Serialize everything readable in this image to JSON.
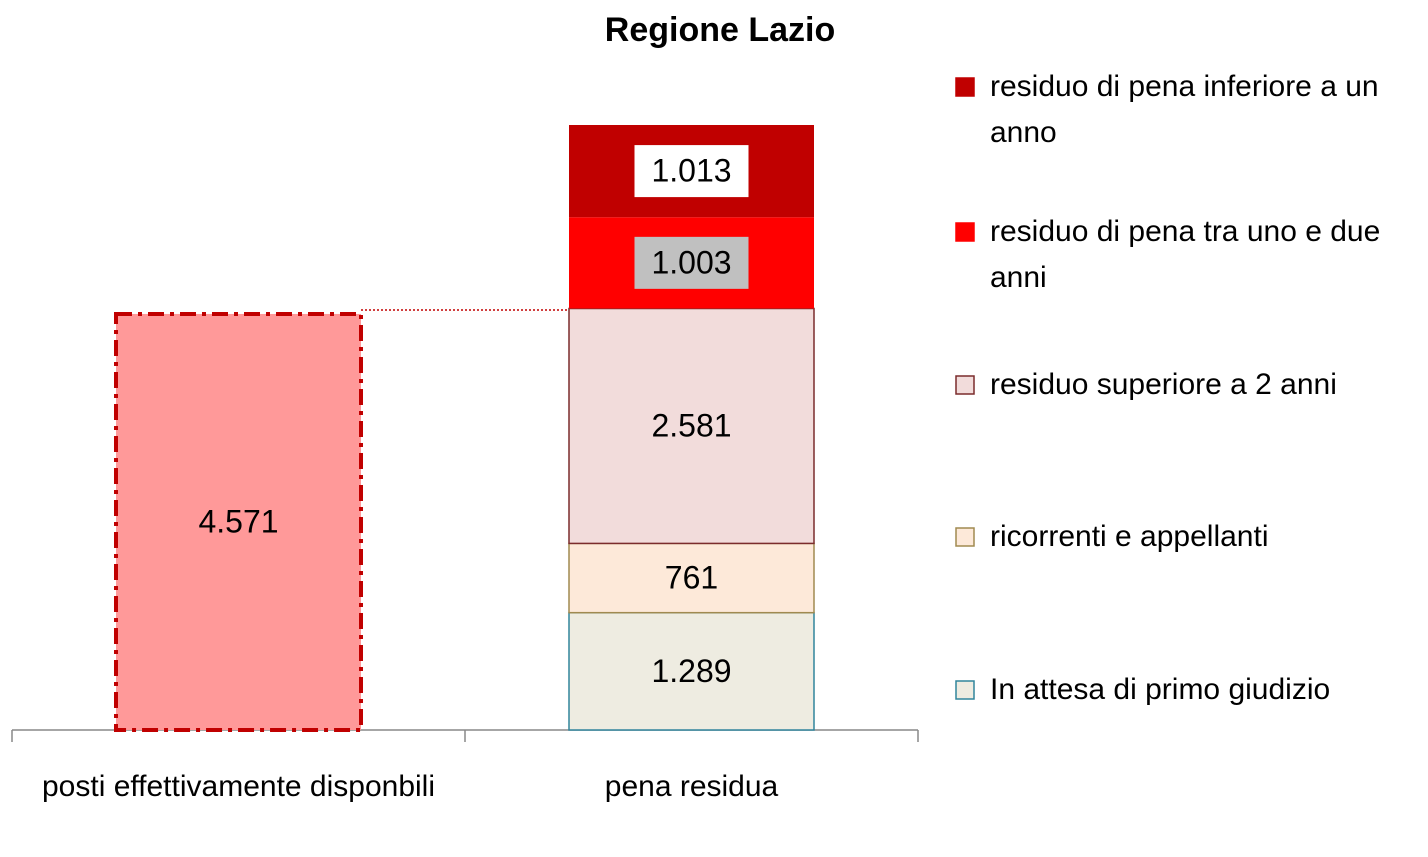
{
  "chart_data": {
    "type": "stacked_bar",
    "title": "Regione Lazio",
    "categories": [
      "posti effettivamente disponbili",
      "pena residua"
    ],
    "series": [
      {
        "color": "#ff9999",
        "edgecolor": "#c00000",
        "edgestyle": "dashdot",
        "values": [
          4571,
          null
        ],
        "value_labels": [
          "4.571",
          null
        ]
      },
      {
        "name": "In attesa di primo giudizio",
        "color": "#eeece1",
        "edgecolor": "#31859c",
        "values": [
          null,
          1289
        ],
        "value_labels": [
          null,
          "1.289"
        ]
      },
      {
        "name": "ricorrenti e appellanti",
        "color": "#fde9d9",
        "edgecolor": "#a08a50",
        "values": [
          null,
          761
        ],
        "value_labels": [
          null,
          "761"
        ]
      },
      {
        "name": "residuo superiore a 2 anni",
        "color": "#f2dcdb",
        "edgecolor": "#7b2c2c",
        "values": [
          null,
          2581
        ],
        "value_labels": [
          null,
          "2.581"
        ]
      },
      {
        "name": "residuo di pena tra uno e due anni",
        "color": "#ff0000",
        "label_box": "#c0c0c0",
        "values": [
          null,
          1003
        ],
        "value_labels": [
          null,
          "1.003"
        ]
      },
      {
        "name": "residuo di pena inferiore a un anno",
        "color": "#c00000",
        "label_box": "#ffffff",
        "values": [
          null,
          1013
        ],
        "value_labels": [
          null,
          "1.013"
        ]
      }
    ]
  }
}
